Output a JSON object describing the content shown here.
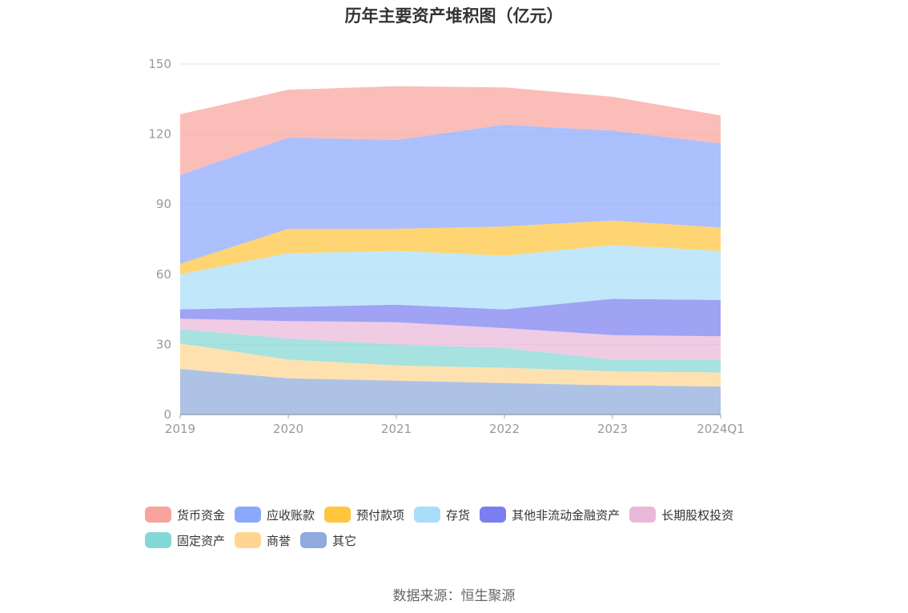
{
  "chart_data": {
    "type": "area",
    "stacked": true,
    "title": "历年主要资产堆积图（亿元）",
    "categories": [
      "2019",
      "2020",
      "2021",
      "2022",
      "2023",
      "2024Q1"
    ],
    "y_ticks": [
      "0",
      "30",
      "60",
      "90",
      "120",
      "150"
    ],
    "ylim": [
      0,
      150
    ],
    "grid": "horizontal",
    "legend_position": "bottom",
    "series": [
      {
        "name": "其它",
        "color": "#8faadc",
        "values": [
          19.5,
          15.5,
          14.5,
          13.5,
          12.5,
          12.0
        ]
      },
      {
        "name": "商誉",
        "color": "#ffd591",
        "values": [
          11.0,
          8.0,
          6.5,
          6.5,
          6.0,
          6.0
        ]
      },
      {
        "name": "固定资产",
        "color": "#83d7d4",
        "values": [
          6.0,
          9.0,
          9.0,
          8.5,
          5.0,
          5.5
        ]
      },
      {
        "name": "长期股权投资",
        "color": "#e9b8d9",
        "values": [
          4.5,
          7.5,
          9.5,
          8.5,
          10.5,
          10.0
        ]
      },
      {
        "name": "其他非流动金融资产",
        "color": "#7b7ef0",
        "values": [
          4.0,
          6.0,
          7.5,
          8.0,
          15.5,
          15.5
        ]
      },
      {
        "name": "存货",
        "color": "#a9def9",
        "values": [
          15.0,
          23.0,
          23.0,
          23.0,
          23.0,
          21.0
        ]
      },
      {
        "name": "预付款项",
        "color": "#ffc53d",
        "values": [
          4.5,
          10.5,
          9.5,
          12.5,
          10.5,
          10.0
        ]
      },
      {
        "name": "应收账款",
        "color": "#8aa8fc",
        "values": [
          38.0,
          39.0,
          38.0,
          43.5,
          38.5,
          36.0
        ]
      },
      {
        "name": "货币资金",
        "color": "#f8a49c",
        "values": [
          26.0,
          20.5,
          23.0,
          16.0,
          14.5,
          12.0
        ]
      }
    ],
    "legend_order": [
      "货币资金",
      "应收账款",
      "预付款项",
      "存货",
      "其他非流动金融资产",
      "长期股权投资",
      "固定资产",
      "商誉",
      "其它"
    ]
  },
  "source": "数据来源：恒生聚源"
}
